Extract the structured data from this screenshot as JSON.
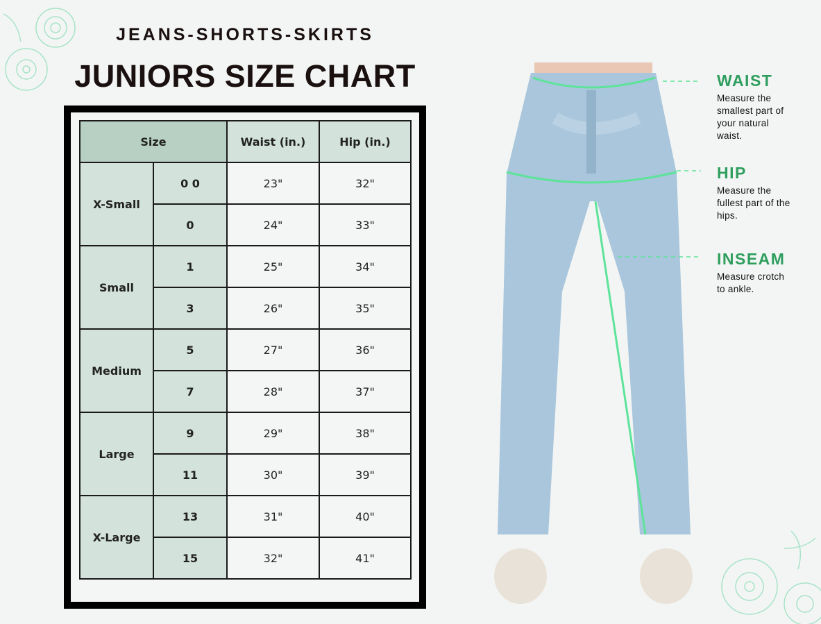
{
  "header": {
    "subtitle": "JEANS-SHORTS-SKIRTS",
    "title": "JUNIORS SIZE CHART"
  },
  "table": {
    "headers": [
      "Size",
      "Waist (in.)",
      "Hip (in.)"
    ],
    "groups": [
      {
        "label": "X-Small",
        "rows": [
          {
            "size": "0 0",
            "waist": "23\"",
            "hip": "32\""
          },
          {
            "size": "0",
            "waist": "24\"",
            "hip": "33\""
          }
        ]
      },
      {
        "label": "Small",
        "rows": [
          {
            "size": "1",
            "waist": "25\"",
            "hip": "34\""
          },
          {
            "size": "3",
            "waist": "26\"",
            "hip": "35\""
          }
        ]
      },
      {
        "label": "Medium",
        "rows": [
          {
            "size": "5",
            "waist": "27\"",
            "hip": "36\""
          },
          {
            "size": "7",
            "waist": "28\"",
            "hip": "37\""
          }
        ]
      },
      {
        "label": "Large",
        "rows": [
          {
            "size": "9",
            "waist": "29\"",
            "hip": "38\""
          },
          {
            "size": "11",
            "waist": "30\"",
            "hip": "39\""
          }
        ]
      },
      {
        "label": "X-Large",
        "rows": [
          {
            "size": "13",
            "waist": "31\"",
            "hip": "40\""
          },
          {
            "size": "15",
            "waist": "32\"",
            "hip": "41\""
          }
        ]
      }
    ]
  },
  "measurements": [
    {
      "title": "WAIST",
      "desc": [
        "Measure the",
        "smallest part of",
        "your natural",
        "waist."
      ]
    },
    {
      "title": "HIP",
      "desc": [
        "Measure the",
        "fullest part of the",
        "hips."
      ]
    },
    {
      "title": "INSEAM",
      "desc": [
        "Measure crotch",
        "to ankle."
      ]
    }
  ],
  "colors": {
    "accent": "#2e9e5e",
    "guide": "#5de39a",
    "header_dark": "#b7d0c3",
    "header_light": "#d3e3db",
    "denim": "#a9c6dc"
  }
}
